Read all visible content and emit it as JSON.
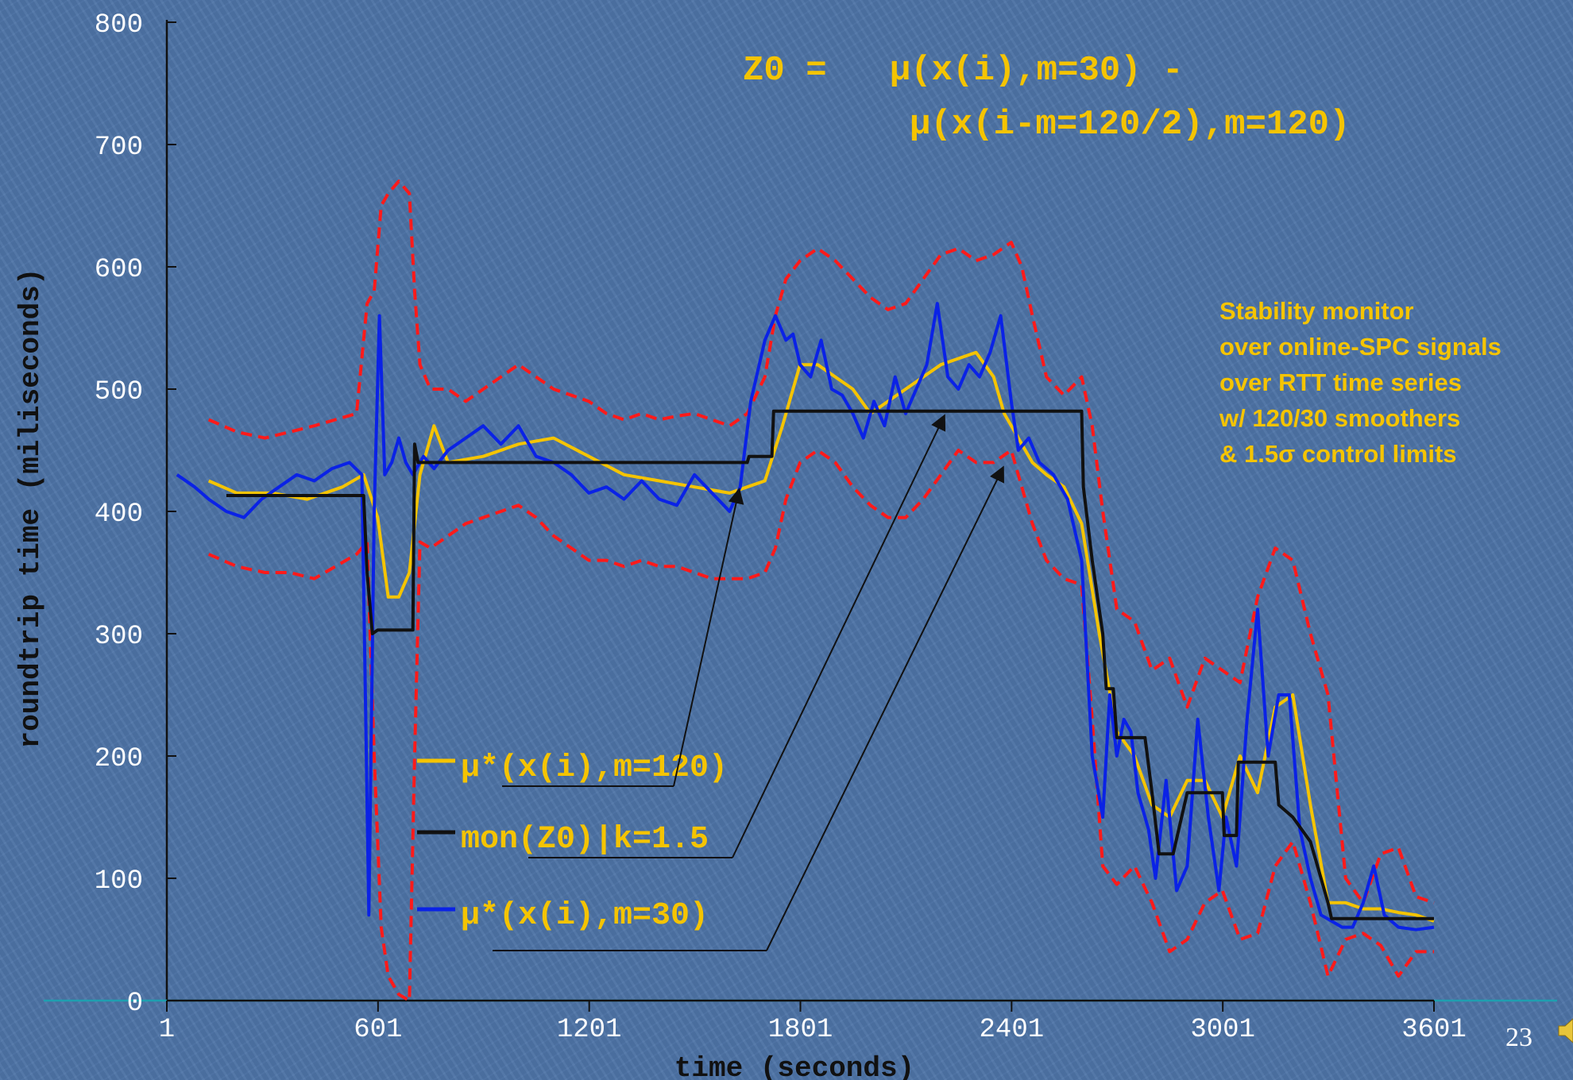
{
  "slide_number": "23",
  "chart_data": {
    "type": "line",
    "xlabel": "time (seconds)",
    "ylabel": "roundtrip time (miliseconds)",
    "xlim": [
      1,
      3601
    ],
    "ylim": [
      0,
      800
    ],
    "x_ticks": [
      1,
      601,
      1201,
      1801,
      2401,
      3001,
      3601
    ],
    "x_tick_labels": [
      "1",
      "601",
      "1201",
      "1801",
      "2401",
      "3001",
      "3601"
    ],
    "y_ticks": [
      0,
      100,
      200,
      300,
      400,
      500,
      600,
      700,
      800
    ],
    "y_tick_labels": [
      "0",
      "100",
      "200",
      "300",
      "400",
      "500",
      "600",
      "700",
      "800"
    ],
    "grid": false,
    "formula_line1": "Z0 =   μ(x(i),m=30) -",
    "formula_line2": "μ(x(i-m=120/2),m=120)",
    "annotation_lines": [
      "Stability monitor",
      "over online-SPC signals",
      "over RTT time series",
      "w/ 120/30 smoothers",
      "& 1.5σ control limits"
    ],
    "legend_placement": "lower-left",
    "series": [
      {
        "name": "μ*(x(i),m=120)",
        "color": "#f5c400",
        "style": "solid",
        "x": [
          120,
          200,
          300,
          400,
          500,
          560,
          600,
          630,
          660,
          690,
          720,
          760,
          800,
          900,
          1000,
          1100,
          1200,
          1300,
          1400,
          1500,
          1600,
          1650,
          1700,
          1750,
          1800,
          1850,
          1900,
          1950,
          2000,
          2050,
          2100,
          2150,
          2200,
          2250,
          2300,
          2350,
          2380,
          2420,
          2460,
          2500,
          2550,
          2600,
          2650,
          2700,
          2750,
          2800,
          2850,
          2900,
          2950,
          3000,
          3050,
          3100,
          3150,
          3200,
          3250,
          3300,
          3350,
          3400,
          3450,
          3500,
          3550,
          3601
        ],
        "values": [
          425,
          415,
          415,
          410,
          420,
          430,
          395,
          330,
          330,
          350,
          430,
          470,
          440,
          445,
          455,
          460,
          445,
          430,
          425,
          420,
          415,
          420,
          425,
          470,
          520,
          520,
          510,
          500,
          480,
          490,
          500,
          510,
          520,
          525,
          530,
          510,
          480,
          460,
          440,
          430,
          420,
          390,
          300,
          220,
          200,
          160,
          150,
          180,
          180,
          150,
          200,
          170,
          240,
          250,
          160,
          80,
          80,
          75,
          75,
          72,
          70,
          65
        ]
      },
      {
        "name": "mon(Z0)|k=1.5",
        "color": "#111111",
        "style": "solid",
        "x": [
          170,
          560,
          570,
          585,
          600,
          700,
          705,
          715,
          1650,
          1655,
          1720,
          1725,
          2600,
          2605,
          2630,
          2660,
          2670,
          2690,
          2700,
          2780,
          2800,
          2820,
          2840,
          2860,
          2900,
          2905,
          3000,
          3005,
          3040,
          3045,
          3150,
          3160,
          3200,
          3250,
          3280,
          3300,
          3310,
          3601
        ],
        "values": [
          413,
          413,
          350,
          300,
          303,
          303,
          455,
          440,
          440,
          445,
          445,
          482,
          482,
          420,
          360,
          300,
          255,
          255,
          215,
          215,
          170,
          120,
          120,
          120,
          170,
          170,
          170,
          135,
          135,
          195,
          195,
          160,
          150,
          130,
          100,
          80,
          67,
          67
        ]
      },
      {
        "name": "μ*(x(i),m=30)",
        "color": "#0a22e6",
        "style": "solid",
        "x": [
          30,
          80,
          120,
          170,
          220,
          270,
          320,
          370,
          420,
          470,
          520,
          555,
          575,
          590,
          605,
          620,
          640,
          660,
          680,
          700,
          730,
          760,
          800,
          850,
          900,
          950,
          1000,
          1050,
          1100,
          1150,
          1200,
          1250,
          1300,
          1350,
          1400,
          1450,
          1500,
          1550,
          1600,
          1630,
          1660,
          1700,
          1730,
          1760,
          1780,
          1800,
          1830,
          1860,
          1890,
          1920,
          1950,
          1980,
          2010,
          2040,
          2070,
          2100,
          2130,
          2160,
          2190,
          2220,
          2250,
          2280,
          2310,
          2340,
          2370,
          2400,
          2420,
          2450,
          2480,
          2520,
          2560,
          2600,
          2630,
          2660,
          2680,
          2700,
          2720,
          2740,
          2760,
          2790,
          2810,
          2840,
          2870,
          2900,
          2930,
          2960,
          2990,
          3010,
          3040,
          3070,
          3100,
          3130,
          3160,
          3190,
          3220,
          3250,
          3280,
          3310,
          3340,
          3370,
          3400,
          3430,
          3460,
          3500,
          3550,
          3601
        ],
        "values": [
          430,
          420,
          410,
          400,
          395,
          410,
          420,
          430,
          425,
          435,
          440,
          430,
          70,
          400,
          560,
          430,
          440,
          460,
          440,
          430,
          445,
          435,
          450,
          460,
          470,
          455,
          470,
          445,
          440,
          430,
          415,
          420,
          410,
          425,
          410,
          405,
          430,
          415,
          400,
          420,
          490,
          540,
          560,
          540,
          545,
          520,
          510,
          540,
          500,
          495,
          480,
          460,
          490,
          470,
          510,
          480,
          500,
          520,
          570,
          510,
          500,
          520,
          510,
          530,
          560,
          490,
          450,
          460,
          440,
          430,
          410,
          360,
          200,
          150,
          250,
          200,
          230,
          220,
          170,
          140,
          100,
          180,
          90,
          110,
          230,
          150,
          90,
          150,
          110,
          230,
          320,
          200,
          250,
          250,
          140,
          100,
          70,
          65,
          60,
          60,
          80,
          110,
          70,
          60,
          58,
          60
        ]
      },
      {
        "name": "",
        "color": "#ff1a1a",
        "style": "dashed",
        "x": [
          120,
          200,
          280,
          350,
          420,
          480,
          540,
          570,
          590,
          610,
          630,
          660,
          690,
          705,
          720,
          750,
          800,
          850,
          900,
          950,
          1000,
          1050,
          1100,
          1150,
          1200,
          1250,
          1300,
          1350,
          1400,
          1450,
          1500,
          1550,
          1600,
          1650,
          1700,
          1730,
          1760,
          1800,
          1850,
          1900,
          1950,
          2000,
          2050,
          2100,
          2150,
          2200,
          2250,
          2300,
          2350,
          2400,
          2430,
          2460,
          2500,
          2550,
          2600,
          2630,
          2660,
          2700,
          2750,
          2800,
          2850,
          2900,
          2950,
          3000,
          3050,
          3100,
          3150,
          3200,
          3250,
          3300,
          3350,
          3400,
          3450,
          3500,
          3550,
          3601
        ],
        "values": [
          475,
          465,
          460,
          465,
          470,
          475,
          480,
          570,
          580,
          650,
          660,
          670,
          660,
          580,
          520,
          500,
          500,
          490,
          500,
          510,
          520,
          510,
          500,
          495,
          490,
          480,
          475,
          480,
          475,
          478,
          480,
          475,
          470,
          480,
          510,
          560,
          590,
          605,
          615,
          605,
          590,
          575,
          565,
          570,
          590,
          610,
          615,
          605,
          610,
          620,
          600,
          560,
          510,
          495,
          510,
          470,
          400,
          320,
          310,
          270,
          280,
          240,
          280,
          270,
          260,
          330,
          370,
          360,
          300,
          250,
          100,
          80,
          120,
          125,
          85,
          80
        ]
      },
      {
        "name": "",
        "color": "#ff1a1a",
        "style": "dashed",
        "x": [
          120,
          200,
          280,
          350,
          420,
          480,
          540,
          570,
          590,
          610,
          630,
          660,
          690,
          705,
          720,
          750,
          800,
          850,
          900,
          950,
          1000,
          1050,
          1100,
          1150,
          1200,
          1250,
          1300,
          1350,
          1400,
          1450,
          1500,
          1550,
          1600,
          1650,
          1700,
          1730,
          1760,
          1800,
          1850,
          1900,
          1950,
          2000,
          2050,
          2100,
          2150,
          2200,
          2250,
          2300,
          2350,
          2400,
          2430,
          2460,
          2500,
          2550,
          2600,
          2630,
          2660,
          2700,
          2750,
          2800,
          2850,
          2900,
          2950,
          3000,
          3050,
          3100,
          3150,
          3200,
          3250,
          3300,
          3350,
          3400,
          3450,
          3500,
          3550,
          3601
        ],
        "values": [
          365,
          355,
          350,
          350,
          345,
          355,
          365,
          375,
          200,
          60,
          20,
          5,
          0,
          200,
          375,
          370,
          380,
          390,
          395,
          400,
          405,
          395,
          380,
          370,
          360,
          360,
          355,
          360,
          355,
          355,
          350,
          345,
          345,
          345,
          350,
          370,
          410,
          440,
          450,
          440,
          420,
          405,
          395,
          395,
          410,
          430,
          450,
          440,
          440,
          450,
          420,
          390,
          360,
          345,
          340,
          230,
          110,
          95,
          110,
          80,
          40,
          50,
          80,
          90,
          50,
          55,
          110,
          130,
          80,
          20,
          50,
          55,
          45,
          20,
          40,
          40
        ]
      }
    ]
  }
}
